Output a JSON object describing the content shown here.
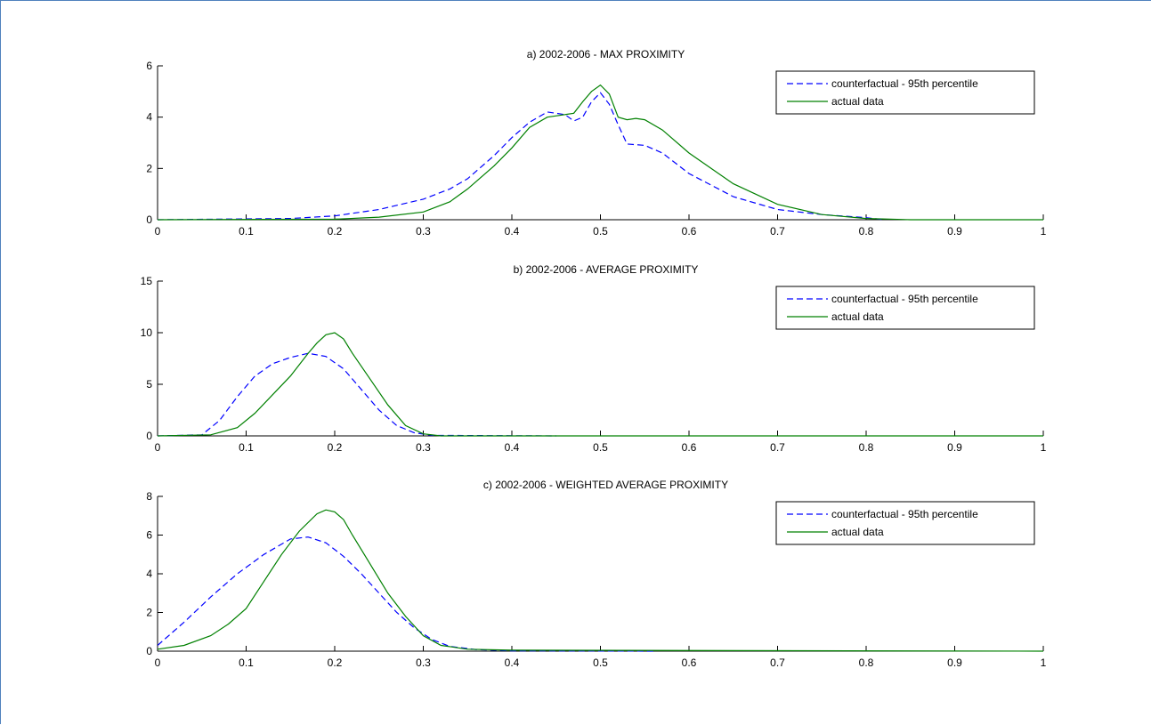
{
  "chart_data": [
    {
      "type": "line",
      "title": "a)  2002-2006 - MAX PROXIMITY",
      "xlim": [
        0,
        1
      ],
      "ylim": [
        0,
        6
      ],
      "xticks": [
        0,
        0.1,
        0.2,
        0.3,
        0.4,
        0.5,
        0.6,
        0.7,
        0.8,
        0.9,
        1
      ],
      "yticks": [
        0,
        2,
        4,
        6
      ],
      "legend_position": "top-right",
      "grid": false,
      "series": [
        {
          "name": "counterfactual - 95th percentile",
          "color": "#0000ff",
          "style": "dashed",
          "x": [
            0,
            0.15,
            0.2,
            0.25,
            0.3,
            0.33,
            0.35,
            0.38,
            0.4,
            0.42,
            0.44,
            0.46,
            0.47,
            0.48,
            0.49,
            0.5,
            0.51,
            0.52,
            0.53,
            0.55,
            0.57,
            0.6,
            0.65,
            0.7,
            0.75,
            0.8,
            0.82
          ],
          "y": [
            0,
            0.05,
            0.15,
            0.4,
            0.8,
            1.2,
            1.6,
            2.5,
            3.2,
            3.8,
            4.2,
            4.1,
            3.85,
            4.0,
            4.6,
            4.95,
            4.5,
            3.7,
            2.95,
            2.9,
            2.6,
            1.8,
            0.9,
            0.4,
            0.2,
            0.08,
            0
          ]
        },
        {
          "name": "actual data",
          "color": "#008000",
          "style": "solid",
          "x": [
            0,
            0.2,
            0.25,
            0.3,
            0.33,
            0.35,
            0.38,
            0.4,
            0.42,
            0.44,
            0.46,
            0.47,
            0.48,
            0.49,
            0.5,
            0.51,
            0.52,
            0.53,
            0.54,
            0.55,
            0.57,
            0.6,
            0.65,
            0.7,
            0.75,
            0.8,
            0.85,
            1
          ],
          "y": [
            0,
            0.02,
            0.1,
            0.3,
            0.7,
            1.2,
            2.1,
            2.8,
            3.6,
            4.0,
            4.1,
            4.15,
            4.6,
            5.0,
            5.25,
            4.9,
            4.0,
            3.9,
            3.95,
            3.9,
            3.5,
            2.6,
            1.4,
            0.6,
            0.2,
            0.05,
            0,
            0
          ]
        }
      ]
    },
    {
      "type": "line",
      "title": "b)  2002-2006 - AVERAGE PROXIMITY",
      "xlim": [
        0,
        1
      ],
      "ylim": [
        0,
        15
      ],
      "xticks": [
        0,
        0.1,
        0.2,
        0.3,
        0.4,
        0.5,
        0.6,
        0.7,
        0.8,
        0.9,
        1
      ],
      "yticks": [
        0,
        5,
        10,
        15
      ],
      "legend_position": "top-right",
      "grid": false,
      "series": [
        {
          "name": "counterfactual - 95th percentile",
          "color": "#0000ff",
          "style": "dashed",
          "x": [
            0,
            0.05,
            0.07,
            0.09,
            0.11,
            0.13,
            0.15,
            0.17,
            0.19,
            0.21,
            0.23,
            0.25,
            0.27,
            0.29,
            0.31,
            0.45
          ],
          "y": [
            0,
            0.1,
            1.5,
            3.8,
            5.8,
            7.0,
            7.6,
            8.0,
            7.7,
            6.5,
            4.5,
            2.5,
            1.0,
            0.3,
            0.05,
            0
          ]
        },
        {
          "name": "actual data",
          "color": "#008000",
          "style": "solid",
          "x": [
            0,
            0.06,
            0.09,
            0.11,
            0.13,
            0.15,
            0.17,
            0.18,
            0.19,
            0.2,
            0.21,
            0.22,
            0.24,
            0.26,
            0.28,
            0.3,
            0.32,
            1
          ],
          "y": [
            0,
            0.1,
            0.8,
            2.2,
            4.0,
            5.8,
            8.0,
            9.0,
            9.8,
            10.0,
            9.4,
            8.0,
            5.5,
            3.0,
            1.0,
            0.2,
            0,
            0
          ]
        }
      ]
    },
    {
      "type": "line",
      "title": "c)  2002-2006 - WEIGHTED AVERAGE PROXIMITY",
      "xlim": [
        0,
        1
      ],
      "ylim": [
        0,
        8
      ],
      "xticks": [
        0,
        0.1,
        0.2,
        0.3,
        0.4,
        0.5,
        0.6,
        0.7,
        0.8,
        0.9,
        1
      ],
      "yticks": [
        0,
        2,
        4,
        6,
        8
      ],
      "legend_position": "top-right",
      "grid": false,
      "series": [
        {
          "name": "counterfactual - 95th percentile",
          "color": "#0000ff",
          "style": "dashed",
          "x": [
            0,
            0.03,
            0.06,
            0.09,
            0.12,
            0.15,
            0.17,
            0.19,
            0.21,
            0.23,
            0.25,
            0.27,
            0.29,
            0.31,
            0.33,
            0.36,
            0.4,
            0.56
          ],
          "y": [
            0.3,
            1.5,
            2.8,
            4.0,
            5.0,
            5.8,
            5.9,
            5.6,
            4.9,
            4.0,
            3.0,
            2.0,
            1.2,
            0.6,
            0.25,
            0.08,
            0.02,
            0
          ]
        },
        {
          "name": "actual data",
          "color": "#008000",
          "style": "solid",
          "x": [
            0,
            0.03,
            0.06,
            0.08,
            0.1,
            0.12,
            0.14,
            0.16,
            0.18,
            0.19,
            0.2,
            0.21,
            0.22,
            0.24,
            0.26,
            0.28,
            0.3,
            0.32,
            0.35,
            0.4,
            1
          ],
          "y": [
            0.1,
            0.3,
            0.8,
            1.4,
            2.2,
            3.6,
            5.0,
            6.2,
            7.1,
            7.3,
            7.2,
            6.8,
            6.0,
            4.5,
            3.0,
            1.8,
            0.8,
            0.3,
            0.1,
            0.05,
            0
          ]
        }
      ]
    }
  ]
}
